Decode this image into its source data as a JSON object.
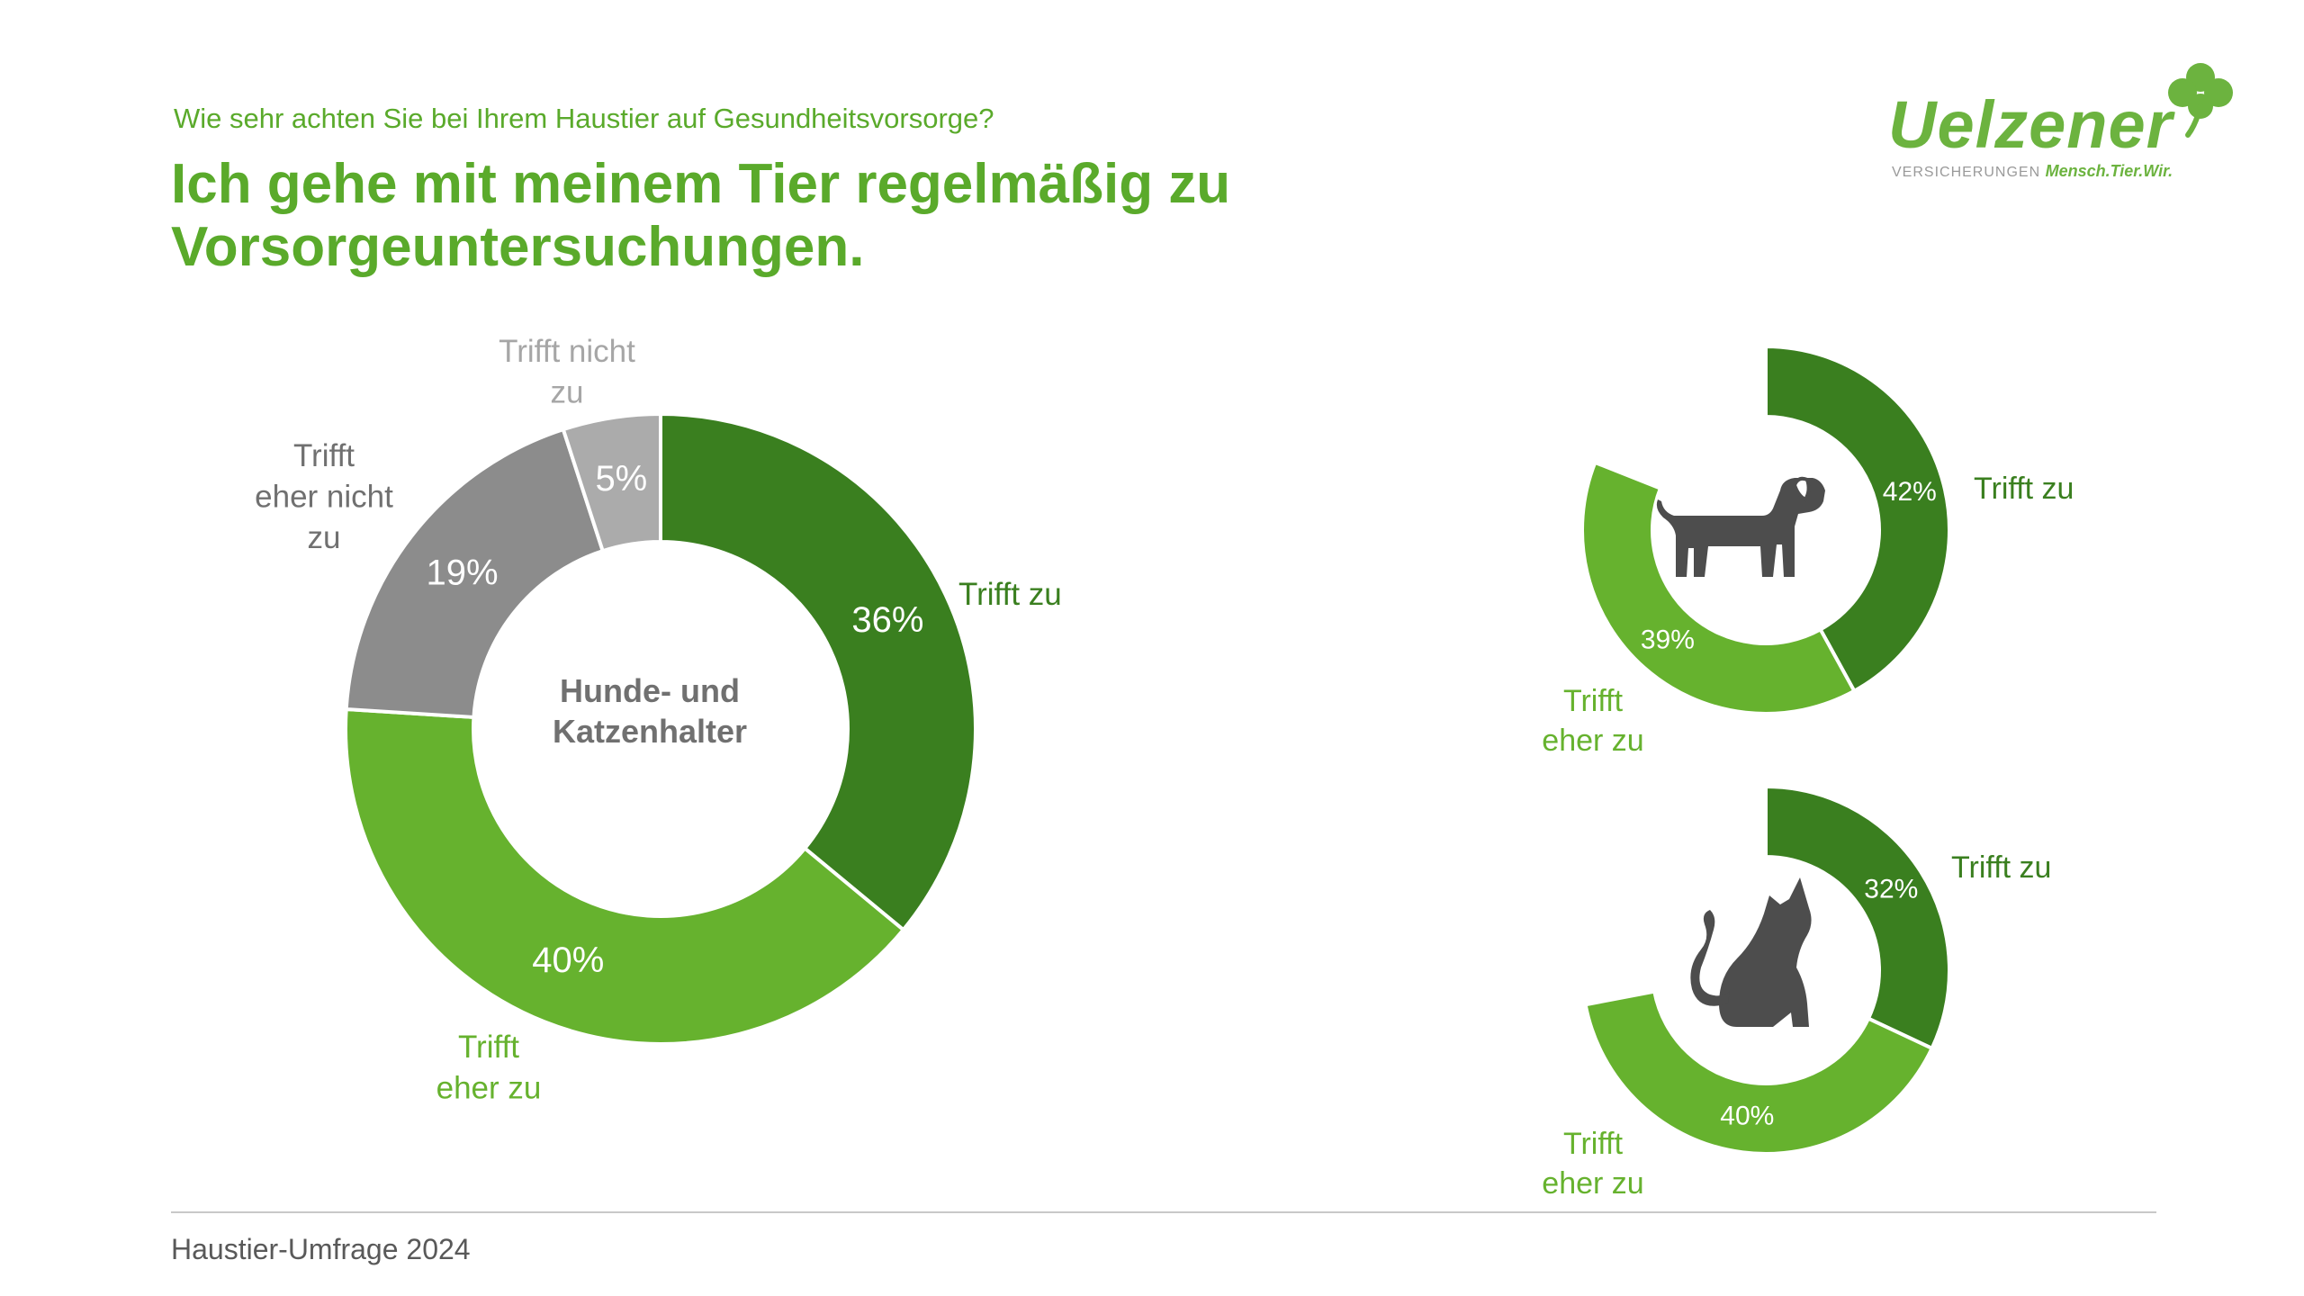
{
  "header": {
    "question": "Wie sehr achten Sie bei Ihrem Haustier auf Gesundheitsvorsorge?",
    "title_line1": "Ich gehe mit meinem Tier regelmäßig zu",
    "title_line2": "Vorsorgeuntersuchungen."
  },
  "logo": {
    "wordmark": "Uelzener",
    "sub_prefix": "VERSICHERUNGEN",
    "sub_claim": "Mensch.Tier.Wir."
  },
  "footer": {
    "text": "Haustier-Umfrage 2024"
  },
  "colors": {
    "trifft_zu": "#3a7f1f",
    "trifft_eher_zu": "#66b22e",
    "trifft_eher_nicht_zu": "#8c8c8c",
    "trifft_nicht_zu": "#ababab",
    "text_dark": "#595959",
    "icon": "#4d4d4d"
  },
  "chart_data": [
    {
      "type": "pie",
      "variant": "donut",
      "center_label_line1": "Hunde- und",
      "center_label_line2": "Katzenhalter",
      "categories": [
        "Trifft zu",
        "Trifft eher zu",
        "Trifft eher nicht zu",
        "Trifft nicht zu"
      ],
      "values": [
        36,
        40,
        19,
        5
      ],
      "value_labels": [
        "36%",
        "40%",
        "19%",
        "5%"
      ],
      "category_labels": [
        [
          "Trifft zu"
        ],
        [
          "Trifft",
          "eher zu"
        ],
        [
          "Trifft",
          "eher nicht",
          "zu"
        ],
        [
          "Trifft nicht",
          "zu"
        ]
      ]
    },
    {
      "type": "pie",
      "variant": "donut",
      "icon": "dog-icon",
      "categories": [
        "Trifft zu",
        "Trifft eher zu"
      ],
      "values": [
        42,
        39
      ],
      "value_labels": [
        "42%",
        "39%"
      ],
      "category_labels": [
        [
          "Trifft zu"
        ],
        [
          "Trifft",
          "eher zu"
        ]
      ]
    },
    {
      "type": "pie",
      "variant": "donut",
      "icon": "cat-icon",
      "categories": [
        "Trifft zu",
        "Trifft eher zu"
      ],
      "values": [
        32,
        40
      ],
      "value_labels": [
        "32%",
        "40%"
      ],
      "category_labels": [
        [
          "Trifft zu"
        ],
        [
          "Trifft",
          "eher zu"
        ]
      ]
    }
  ]
}
